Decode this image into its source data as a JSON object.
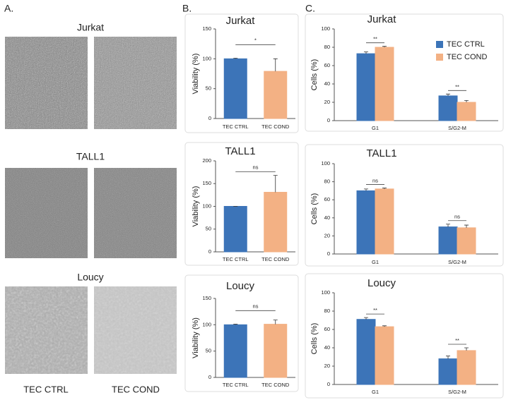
{
  "panel_labels": [
    "A.",
    "B.",
    "C."
  ],
  "panel_a": {
    "rows": [
      "Jurkat",
      "TALL1",
      "Loucy"
    ],
    "columns": [
      "TEC CTRL",
      "TEC COND"
    ]
  },
  "chart_data": [
    {
      "type": "bar",
      "title": "Jurkat",
      "y_label": "Viability (%)",
      "categories": [
        "TEC CTRL",
        "TEC COND"
      ],
      "values": [
        100,
        79
      ],
      "errors": [
        1,
        21
      ],
      "colors": [
        "#3c74b8",
        "#f3b184"
      ],
      "ylim": [
        0,
        150
      ],
      "yticks": [
        0,
        50,
        100,
        150
      ],
      "annotations": [
        "*"
      ]
    },
    {
      "type": "bar",
      "title": "TALL1",
      "y_label": "Viability (%)",
      "categories": [
        "TEC CTRL",
        "TEC COND"
      ],
      "values": [
        100,
        131
      ],
      "errors": [
        0,
        37
      ],
      "colors": [
        "#3c74b8",
        "#f3b184"
      ],
      "ylim": [
        0,
        200
      ],
      "yticks": [
        0,
        50,
        100,
        150,
        200
      ],
      "annotations": [
        "ns"
      ]
    },
    {
      "type": "bar",
      "title": "Loucy",
      "y_label": "Viability (%)",
      "categories": [
        "TEC CTRL",
        "TEC COND"
      ],
      "values": [
        100,
        101
      ],
      "errors": [
        1,
        8
      ],
      "colors": [
        "#3c74b8",
        "#f3b184"
      ],
      "ylim": [
        0,
        150
      ],
      "yticks": [
        0,
        50,
        100,
        150
      ],
      "annotations": [
        "ns"
      ]
    },
    {
      "type": "bar",
      "title": "Jurkat",
      "y_label": "Cells (%)",
      "categories": [
        "G1",
        "S/G2-M"
      ],
      "series": [
        {
          "name": "TEC CTRL",
          "color": "#3c74b8",
          "values": [
            73,
            27
          ],
          "errors": [
            2,
            2
          ]
        },
        {
          "name": "TEC COND",
          "color": "#f3b184",
          "values": [
            80,
            20
          ],
          "errors": [
            1,
            2
          ]
        }
      ],
      "ylim": [
        0,
        100
      ],
      "yticks": [
        0,
        20,
        40,
        60,
        80,
        100
      ],
      "annotations": [
        "**",
        "**"
      ],
      "legend": "upper right"
    },
    {
      "type": "bar",
      "title": "TALL1",
      "y_label": "Cells (%)",
      "categories": [
        "G1",
        "S/G2-M"
      ],
      "series": [
        {
          "color": "#3c74b8",
          "values": [
            70,
            30
          ],
          "errors": [
            2,
            3
          ]
        },
        {
          "color": "#f3b184",
          "values": [
            72,
            29
          ],
          "errors": [
            1,
            3
          ]
        }
      ],
      "ylim": [
        0,
        100
      ],
      "yticks": [
        0,
        20,
        40,
        60,
        80,
        100
      ],
      "annotations": [
        "ns",
        "ns"
      ]
    },
    {
      "type": "bar",
      "title": "Loucy",
      "y_label": "Cells (%)",
      "categories": [
        "G1",
        "S/G2-M"
      ],
      "series": [
        {
          "color": "#3c74b8",
          "values": [
            71,
            28
          ],
          "errors": [
            2,
            3
          ]
        },
        {
          "color": "#f3b184",
          "values": [
            63,
            37
          ],
          "errors": [
            1,
            3
          ]
        }
      ],
      "ylim": [
        0,
        100
      ],
      "yticks": [
        0,
        20,
        40,
        60,
        80,
        100
      ],
      "annotations": [
        "**",
        "**"
      ]
    }
  ]
}
